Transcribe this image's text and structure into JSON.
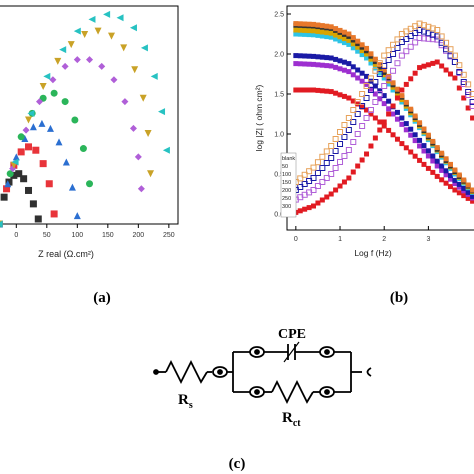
{
  "panel_labels": {
    "a": "(a)",
    "b": "(b)",
    "c": "(c)"
  },
  "chart_data": [
    {
      "type": "scatter",
      "panel": "a",
      "xlabel": "Z real (Ω.cm²)",
      "ylabel": "",
      "xlim": [
        -30,
        265
      ],
      "ylim": [
        0,
        130
      ],
      "xticks": [
        0,
        50,
        100,
        150,
        200,
        250
      ],
      "xtick_labels": [
        "0",
        "50",
        "100",
        "150",
        "200",
        "250"
      ],
      "grid": false,
      "legend": "none",
      "series": [
        {
          "color": "#303030",
          "marker": "square",
          "x": [
            -28,
            -20,
            -12,
            -4,
            4,
            12,
            20,
            28,
            36
          ],
          "y": [
            0,
            16,
            25,
            29,
            30,
            27,
            20,
            12,
            3
          ]
        },
        {
          "color": "#e8343a",
          "marker": "square",
          "x": [
            -28,
            -16,
            -4,
            8,
            20,
            32,
            44,
            54,
            62
          ],
          "y": [
            0,
            21,
            35,
            43,
            46,
            44,
            36,
            24,
            6
          ]
        },
        {
          "color": "#2b6fd1",
          "marker": "triangle-up",
          "x": [
            -28,
            -14,
            0,
            14,
            28,
            42,
            56,
            70,
            82,
            92,
            100
          ],
          "y": [
            0,
            24,
            40,
            51,
            58,
            60,
            57,
            49,
            37,
            22,
            5
          ]
        },
        {
          "color": "#2bb55a",
          "marker": "circle",
          "x": [
            -28,
            -10,
            8,
            26,
            44,
            62,
            80,
            96,
            110,
            120
          ],
          "y": [
            0,
            30,
            52,
            66,
            75,
            78,
            73,
            62,
            45,
            24
          ]
        },
        {
          "color": "#b05fd8",
          "marker": "diamond",
          "x": [
            -28,
            -6,
            16,
            38,
            60,
            80,
            100,
            120,
            140,
            160,
            178,
            192,
            200,
            205
          ],
          "y": [
            0,
            33,
            56,
            73,
            86,
            94,
            98,
            98,
            94,
            86,
            73,
            57,
            40,
            21
          ]
        },
        {
          "color": "#c9a227",
          "marker": "triangle-down",
          "x": [
            -28,
            -4,
            20,
            44,
            68,
            90,
            112,
            134,
            156,
            176,
            194,
            208,
            216,
            220
          ],
          "y": [
            0,
            35,
            62,
            82,
            97,
            107,
            113,
            115,
            112,
            105,
            92,
            75,
            54,
            30
          ]
        },
        {
          "color": "#27c2c2",
          "marker": "triangle-left",
          "x": [
            -28,
            -2,
            24,
            50,
            76,
            100,
            124,
            148,
            170,
            192,
            210,
            226,
            238,
            246
          ],
          "y": [
            0,
            37,
            66,
            88,
            104,
            115,
            122,
            125,
            123,
            117,
            105,
            88,
            67,
            44
          ]
        }
      ]
    },
    {
      "type": "scatter",
      "panel": "b",
      "xlabel": "Log f (Hz)",
      "ylabel": "log |Z| ( ohm cm²)",
      "xlim": [
        -0.2,
        4.1
      ],
      "ylim": [
        -0.2,
        2.6
      ],
      "xticks": [
        0,
        1,
        2,
        3
      ],
      "xtick_labels": [
        "0",
        "1",
        "2",
        "3"
      ],
      "yticks": [
        0.0,
        0.5,
        1.0,
        1.5,
        2.0,
        2.5
      ],
      "ytick_labels": [
        "0.0",
        "0.5",
        "1.0",
        "1.5",
        "2.0",
        "2.5"
      ],
      "grid": false,
      "legend": "bottom-left",
      "legend_title": "blank",
      "legend_entries": [
        "50",
        "100",
        "150",
        "200",
        "250",
        "300"
      ],
      "series": [
        {
          "name": "blank",
          "color": "#e11b22",
          "marker": "square",
          "x": [
            0,
            0.4,
            0.8,
            1.2,
            1.6,
            2.0,
            2.4,
            2.8,
            3.2,
            3.6,
            4.0
          ],
          "y": [
            1.55,
            1.55,
            1.53,
            1.45,
            1.3,
            1.1,
            0.88,
            0.67,
            0.47,
            0.3,
            0.16
          ]
        },
        {
          "name": "50",
          "color": "#9d2fd0",
          "marker": "square",
          "x": [
            0,
            0.4,
            0.8,
            1.2,
            1.6,
            2.0,
            2.4,
            2.8,
            3.2,
            3.6,
            4.0
          ],
          "y": [
            1.88,
            1.87,
            1.85,
            1.78,
            1.62,
            1.38,
            1.12,
            0.85,
            0.6,
            0.38,
            0.2
          ]
        },
        {
          "name": "100",
          "color": "#1a1aa6",
          "marker": "square",
          "x": [
            0,
            0.4,
            0.8,
            1.2,
            1.6,
            2.0,
            2.4,
            2.8,
            3.2,
            3.6,
            4.0
          ],
          "y": [
            1.98,
            1.97,
            1.95,
            1.88,
            1.72,
            1.48,
            1.2,
            0.92,
            0.66,
            0.42,
            0.22
          ]
        },
        {
          "name": "150",
          "color": "#2ec4e6",
          "marker": "square",
          "x": [
            0,
            0.4,
            0.8,
            1.2,
            1.6,
            2.0,
            2.4,
            2.8,
            3.2,
            3.6,
            4.0
          ],
          "y": [
            2.25,
            2.24,
            2.21,
            2.12,
            1.95,
            1.7,
            1.4,
            1.08,
            0.78,
            0.5,
            0.27
          ]
        },
        {
          "name": "200",
          "color": "#d9a400",
          "marker": "square",
          "x": [
            0,
            0.4,
            0.8,
            1.2,
            1.6,
            2.0,
            2.4,
            2.8,
            3.2,
            3.6,
            4.0
          ],
          "y": [
            2.3,
            2.29,
            2.26,
            2.17,
            2.0,
            1.74,
            1.43,
            1.1,
            0.8,
            0.52,
            0.28
          ]
        },
        {
          "name": "250",
          "color": "#333333",
          "marker": "square",
          "x": [
            0,
            0.4,
            0.8,
            1.2,
            1.6,
            2.0,
            2.4,
            2.8,
            3.2,
            3.6,
            4.0
          ],
          "y": [
            2.36,
            2.35,
            2.32,
            2.22,
            2.04,
            1.77,
            1.46,
            1.12,
            0.81,
            0.53,
            0.29
          ]
        },
        {
          "name": "300",
          "color": "#e7782b",
          "marker": "square",
          "x": [
            0,
            0.4,
            0.8,
            1.2,
            1.6,
            2.0,
            2.4,
            2.8,
            3.2,
            3.6,
            4.0
          ],
          "y": [
            2.38,
            2.37,
            2.34,
            2.25,
            2.07,
            1.8,
            1.48,
            1.14,
            0.83,
            0.55,
            0.3
          ]
        },
        {
          "name": "",
          "color": "#e11b22",
          "marker": "square",
          "x": [
            0,
            0.4,
            0.8,
            1.2,
            1.6,
            2.0,
            2.4,
            2.8,
            3.2,
            3.6,
            4.0
          ],
          "y": [
            0.02,
            0.1,
            0.25,
            0.45,
            0.75,
            1.15,
            1.55,
            1.83,
            1.9,
            1.7,
            1.2
          ]
        },
        {
          "name": "",
          "color": "#b060d8",
          "marker": "square-open",
          "x": [
            0,
            0.4,
            0.8,
            1.2,
            1.6,
            2.0,
            2.4,
            2.8,
            3.2,
            3.6,
            4.0
          ],
          "y": [
            0.18,
            0.3,
            0.5,
            0.8,
            1.2,
            1.6,
            1.98,
            2.2,
            2.18,
            1.9,
            1.35
          ]
        },
        {
          "name": "",
          "color": "#1a1aa6",
          "marker": "square-open",
          "x": [
            0,
            0.4,
            0.8,
            1.2,
            1.6,
            2.0,
            2.4,
            2.8,
            3.2,
            3.6,
            4.0
          ],
          "y": [
            0.3,
            0.45,
            0.7,
            1.05,
            1.45,
            1.85,
            2.15,
            2.3,
            2.22,
            1.9,
            1.4
          ]
        },
        {
          "name": "",
          "color": "#e7a25a",
          "marker": "square-open",
          "x": [
            0,
            0.4,
            0.8,
            1.2,
            1.6,
            2.0,
            2.4,
            2.8,
            3.2,
            3.6,
            4.0
          ],
          "y": [
            0.4,
            0.58,
            0.85,
            1.2,
            1.6,
            1.98,
            2.25,
            2.38,
            2.3,
            1.98,
            1.5
          ]
        }
      ]
    }
  ],
  "circuit": {
    "labels": {
      "rs": "R",
      "rs_sub": "s",
      "cpe": "CPE",
      "rct": "R",
      "rct_sub": "ct"
    }
  }
}
